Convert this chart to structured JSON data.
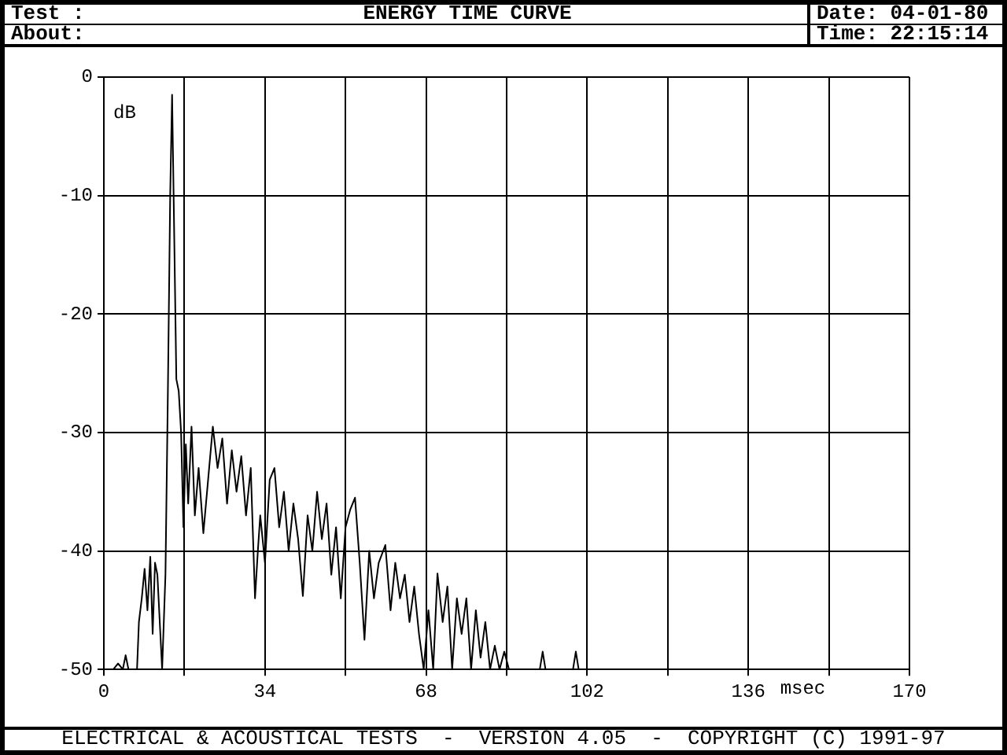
{
  "chart_data": {
    "type": "line",
    "title": "ENERGY TIME CURVE",
    "xlabel": "msec",
    "ylabel": "dB",
    "annotations": [
      "Test :",
      "About:",
      "Date: 04-01-80",
      "Time: 22:15:14",
      "ELECTRICAL & ACOUSTICAL TESTS  -  VERSION 4.05  -  COPYRIGHT (C) 1991-97"
    ],
    "x": [
      0,
      2,
      3,
      4,
      4.6,
      5.2,
      7,
      7.4,
      8,
      8.6,
      9.2,
      9.8,
      10.3,
      10.8,
      11.3,
      11.8,
      12.3,
      13,
      13.5,
      14,
      14.4,
      14.8,
      15.3,
      15.8,
      16.3,
      16.8,
      17.3,
      17.8,
      18.5,
      19.2,
      20,
      21,
      22,
      23,
      24,
      25,
      26,
      27,
      28,
      29,
      30,
      31,
      31.9,
      32.5,
      33,
      34,
      35,
      36,
      37,
      38,
      39,
      40,
      41,
      42,
      43,
      44,
      45,
      46,
      47,
      48,
      49,
      50,
      51,
      52,
      53,
      54,
      55,
      56,
      57,
      58,
      59.4,
      60.5,
      61.5,
      62.5,
      63.5,
      64.5,
      65.5,
      66.5,
      67.5,
      68.5,
      69.5,
      70.4,
      71.5,
      72.5,
      73.5,
      74.5,
      75.5,
      76.5,
      77.5,
      78.5,
      79.5,
      80.5,
      81.5,
      82.5,
      83.5,
      84.5,
      85.5,
      92,
      92.6,
      93.2,
      99,
      99.6,
      100.2,
      170
    ],
    "series": [
      {
        "color": "#000000",
        "values": [
          -50,
          -50,
          -49.5,
          -50,
          -48.8,
          -50,
          -50,
          -46,
          -44,
          -41.5,
          -45,
          -40.5,
          -47,
          -41,
          -42,
          -46,
          -50,
          -42,
          -27,
          -10,
          -1.5,
          -12,
          -25.5,
          -26.5,
          -30,
          -38,
          -31,
          -36,
          -29.5,
          -37,
          -33,
          -38.5,
          -34,
          -29.5,
          -33,
          -30.5,
          -36,
          -31.5,
          -35,
          -32,
          -37,
          -33,
          -44,
          -40,
          -37,
          -41,
          -34,
          -33,
          -38,
          -35,
          -40,
          -36,
          -39,
          -43.8,
          -37,
          -40,
          -35,
          -39,
          -36,
          -42,
          -38,
          -44,
          -38,
          -36.5,
          -35.5,
          -41,
          -47.5,
          -40,
          -44,
          -41,
          -39.5,
          -45,
          -41,
          -44,
          -42,
          -46,
          -43,
          -47,
          -50,
          -45,
          -50,
          -41.9,
          -46,
          -43,
          -50,
          -44,
          -47,
          -44,
          -50,
          -45,
          -49,
          -46,
          -50,
          -48,
          -50,
          -48.5,
          -50,
          -50,
          -48.5,
          -50,
          -50,
          -48.5,
          -50,
          -50
        ]
      }
    ],
    "xlim": [
      0,
      170
    ],
    "xticks": [
      0,
      {
        "value": 17,
        "label": null
      },
      34,
      {
        "value": 51,
        "label": null
      },
      68,
      {
        "value": 85,
        "label": null
      },
      102,
      {
        "value": 119,
        "label": null
      },
      136,
      {
        "value": 153,
        "label": null
      },
      170
    ],
    "ylim": [
      -50,
      0
    ],
    "yticks": [
      0,
      -10,
      -20,
      -30,
      -40,
      -50
    ],
    "grid": true,
    "marker": "none",
    "line_style": "solid"
  }
}
